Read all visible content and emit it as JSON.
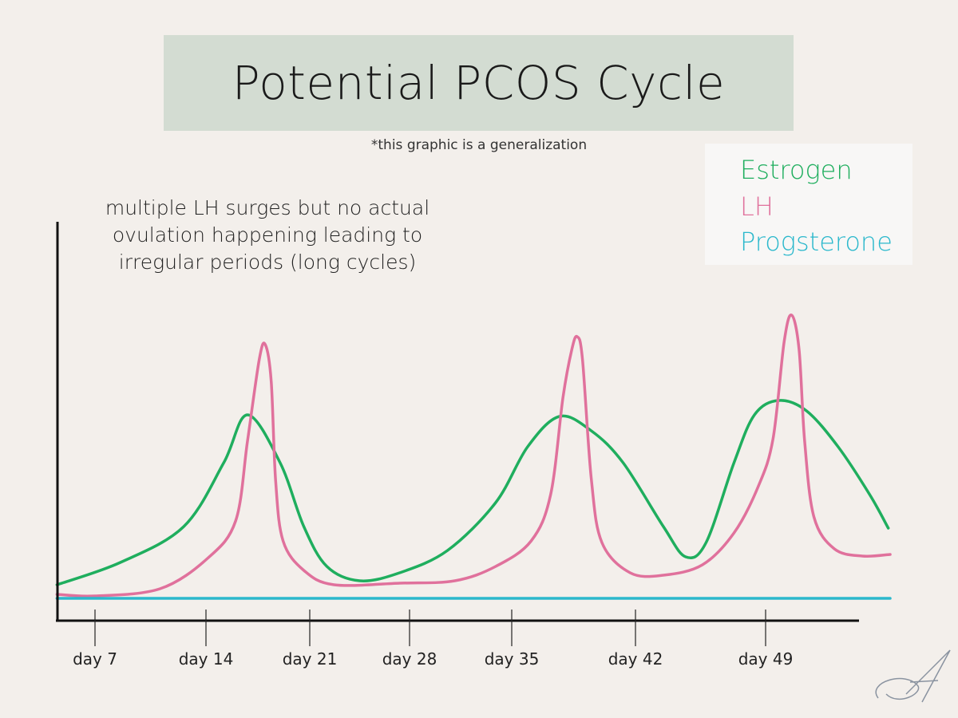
{
  "title": "Potential PCOS Cycle",
  "subtitle": "*this graphic is a generalization",
  "annotation": [
    "multiple LH surges but no actual",
    "ovulation happening leading to",
    "irregular periods (long cycles)"
  ],
  "chart_data": {
    "type": "line",
    "title": "Potential PCOS Cycle",
    "xlabel": "",
    "ylabel": "",
    "x_ticks": [
      "day 7",
      "day 14",
      "day 21",
      "day 28",
      "day 35",
      "day 42",
      "day 49"
    ],
    "x_tick_days": [
      7,
      14,
      21,
      28,
      35,
      42,
      49
    ],
    "xlim": [
      4.6,
      57
    ],
    "ylim": [
      0,
      100
    ],
    "grid": false,
    "legend_placement": "top-right",
    "legend": [
      "Estrogen",
      "LH",
      "Progsterone"
    ],
    "series": [
      {
        "name": "Estrogen",
        "color": "#1fae5e",
        "points": [
          [
            4.6,
            9
          ],
          [
            8.6,
            14.6
          ],
          [
            12.6,
            23.6
          ],
          [
            15.2,
            39.6
          ],
          [
            16.8,
            51.6
          ],
          [
            19.0,
            39.6
          ],
          [
            20.6,
            23.6
          ],
          [
            22.2,
            13.6
          ],
          [
            24.5,
            10
          ],
          [
            27.3,
            12
          ],
          [
            30.6,
            17.6
          ],
          [
            33.9,
            29.6
          ],
          [
            35.9,
            43.6
          ],
          [
            37.7,
            51.2
          ],
          [
            39.5,
            47.6
          ],
          [
            41.3,
            39.6
          ],
          [
            43.5,
            23.6
          ],
          [
            44.7,
            16
          ],
          [
            45.8,
            19.6
          ],
          [
            47.3,
            39.6
          ],
          [
            48.4,
            51.6
          ],
          [
            49.7,
            55.2
          ],
          [
            51.2,
            52.6
          ],
          [
            52.9,
            43.6
          ],
          [
            54.6,
            31.6
          ],
          [
            55.6,
            23.2
          ]
        ]
      },
      {
        "name": "LH",
        "color": "#e0719c",
        "points": [
          [
            4.6,
            6.6
          ],
          [
            7.0,
            6.2
          ],
          [
            11.1,
            8
          ],
          [
            14.1,
            15.6
          ],
          [
            16.0,
            25
          ],
          [
            16.8,
            45
          ],
          [
            17.6,
            65.6
          ],
          [
            18.0,
            69.2
          ],
          [
            18.4,
            60
          ],
          [
            18.7,
            35
          ],
          [
            19.2,
            20
          ],
          [
            20.6,
            12.6
          ],
          [
            22.7,
            9
          ],
          [
            27.3,
            9.4
          ],
          [
            31.1,
            10
          ],
          [
            33.9,
            13.6
          ],
          [
            36.1,
            20
          ],
          [
            37.2,
            31.6
          ],
          [
            37.9,
            56
          ],
          [
            38.4,
            68
          ],
          [
            38.7,
            71.2
          ],
          [
            39.0,
            65.6
          ],
          [
            39.5,
            35.6
          ],
          [
            40.1,
            19.6
          ],
          [
            41.7,
            12
          ],
          [
            43.5,
            11.4
          ],
          [
            45.6,
            14
          ],
          [
            47.3,
            22
          ],
          [
            48.6,
            33.6
          ],
          [
            49.4,
            45.6
          ],
          [
            50.0,
            70
          ],
          [
            50.4,
            76.6
          ],
          [
            50.8,
            68
          ],
          [
            51.1,
            45
          ],
          [
            51.6,
            26
          ],
          [
            52.7,
            18
          ],
          [
            54.2,
            16.2
          ],
          [
            55.7,
            16.6
          ]
        ]
      },
      {
        "name": "Progsterone",
        "color": "#2bb8cc",
        "points": [
          [
            4.6,
            5.6
          ],
          [
            55.7,
            5.6
          ]
        ]
      }
    ]
  }
}
